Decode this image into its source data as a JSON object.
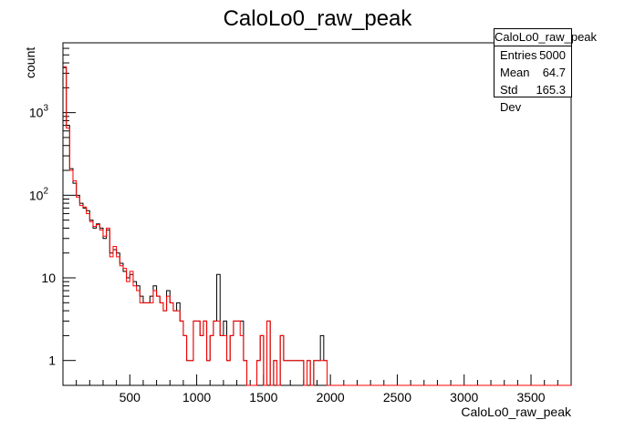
{
  "chart_data": {
    "type": "histogram",
    "title": "CaloLo0_raw_peak",
    "xlabel": "CaloLo0_raw_peak",
    "ylabel": "count",
    "xlim": [
      0,
      3800
    ],
    "ylim": [
      0.5,
      7000
    ],
    "yscale": "log",
    "bin_width": 25,
    "x_ticks": [
      500,
      1000,
      1500,
      2000,
      2500,
      3000,
      3500
    ],
    "y_ticks": [
      {
        "value": 1,
        "label": "1"
      },
      {
        "value": 10,
        "label": "10"
      },
      {
        "value": 100,
        "label": "10",
        "exp": "2"
      },
      {
        "value": 1000,
        "label": "10",
        "exp": "3"
      }
    ],
    "series": [
      {
        "color": "#000000",
        "values": [
          3500,
          700,
          210,
          140,
          100,
          80,
          70,
          65,
          50,
          40,
          45,
          40,
          30,
          38,
          20,
          22,
          20,
          15,
          12,
          10,
          11,
          9,
          8,
          6,
          5,
          5,
          6,
          8,
          6,
          5,
          4,
          7,
          5,
          4,
          5,
          3,
          2,
          1,
          1,
          3,
          3,
          2,
          3,
          1,
          2,
          3,
          11,
          2,
          3,
          1,
          2,
          3,
          3,
          3,
          1,
          0,
          0,
          0,
          1,
          2,
          0,
          3,
          0,
          1,
          0,
          2,
          1,
          1,
          1,
          1,
          1,
          1,
          0,
          1,
          0,
          1,
          1,
          2,
          1,
          0,
          0,
          0,
          0,
          0,
          0,
          0,
          0,
          0,
          0,
          0,
          0,
          0,
          0,
          0,
          0,
          0,
          0,
          0,
          0,
          0,
          0,
          0,
          0,
          0,
          0,
          0,
          0,
          0,
          0,
          0,
          0,
          0,
          0,
          0,
          0,
          0,
          0,
          0,
          0,
          0,
          0,
          0,
          0,
          0,
          0,
          0,
          0,
          0,
          0,
          0,
          0,
          0,
          0,
          0,
          0,
          0,
          0,
          0,
          0,
          0,
          0,
          0,
          0,
          0,
          0,
          0,
          0,
          0,
          0,
          0,
          0,
          0
        ]
      },
      {
        "color": "#ff0000",
        "values": [
          3600,
          650,
          200,
          150,
          95,
          75,
          72,
          60,
          48,
          42,
          44,
          38,
          32,
          40,
          18,
          24,
          18,
          14,
          13,
          9,
          12,
          8,
          7,
          5,
          5,
          5,
          5,
          7,
          6,
          5,
          4,
          6,
          5,
          4,
          4,
          3,
          2,
          1,
          1,
          3,
          3,
          2,
          3,
          1,
          2,
          3,
          3,
          2,
          2,
          1,
          2,
          3,
          3,
          2,
          1,
          0,
          0,
          0,
          1,
          2,
          0,
          3,
          0,
          1,
          0,
          2,
          1,
          1,
          1,
          1,
          1,
          1,
          0,
          1,
          0,
          1,
          1,
          1,
          1,
          0,
          0,
          0,
          0,
          0,
          0,
          0,
          0,
          0,
          0,
          0,
          0,
          0,
          0,
          0,
          0,
          0,
          0,
          0,
          0,
          0,
          0,
          0,
          0,
          0,
          0,
          0,
          0,
          0,
          0,
          0,
          0,
          0,
          0,
          0,
          0,
          0,
          0,
          0,
          0,
          0,
          0,
          0,
          0,
          0,
          0,
          0,
          0,
          0,
          0,
          0,
          0,
          0,
          0,
          0,
          0,
          0,
          0,
          0,
          0,
          0,
          0,
          0,
          0,
          0,
          0,
          0,
          0,
          0,
          0,
          0,
          0,
          0
        ]
      }
    ],
    "stats": {
      "title": "CaloLo0_raw_peak",
      "rows": [
        {
          "label": "Entries",
          "value": "5000"
        },
        {
          "label": "Mean",
          "value": "64.7"
        },
        {
          "label": "Std Dev",
          "value": "165.3"
        }
      ]
    }
  }
}
